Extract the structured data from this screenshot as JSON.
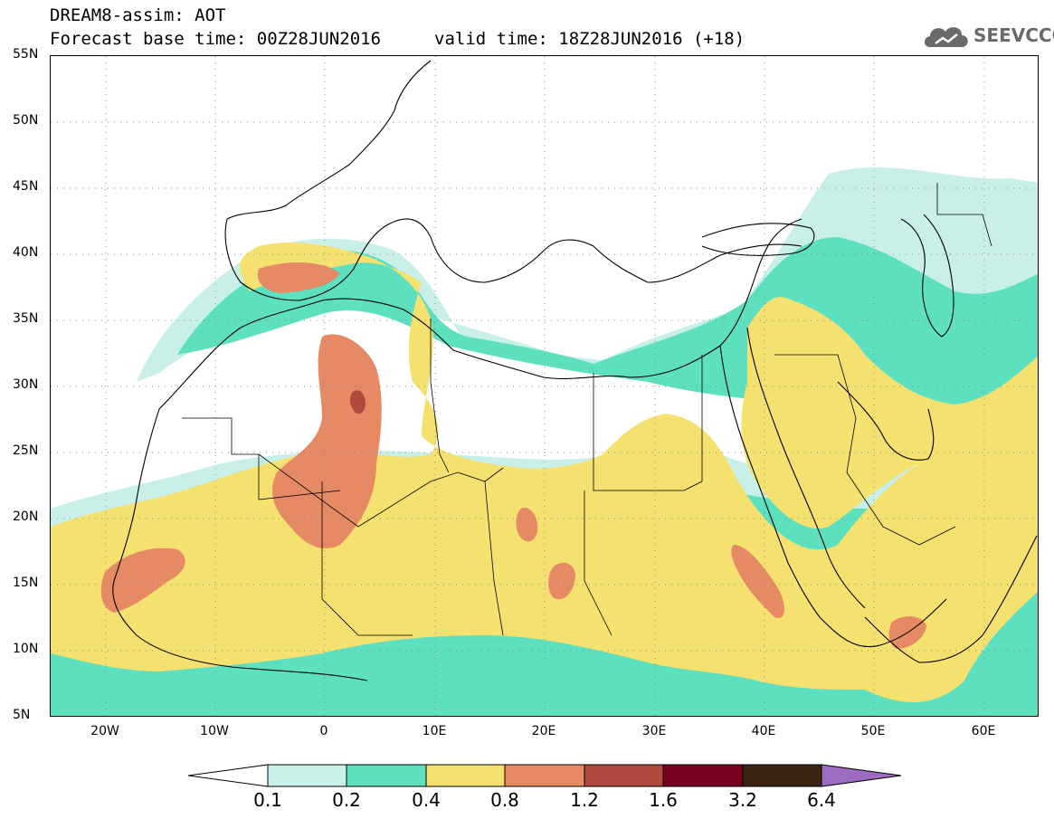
{
  "title": {
    "line1": "DREAM8-assim: AOT",
    "forecast": "Forecast base time: 00Z28JUN2016",
    "valid": "valid time: 18Z28JUN2016 (+18)"
  },
  "logo": {
    "text": "SEEVCCC",
    "icon": "cloud-icon"
  },
  "map": {
    "lat_labels": [
      "55N",
      "50N",
      "45N",
      "40N",
      "35N",
      "30N",
      "25N",
      "20N",
      "15N",
      "10N",
      "5N"
    ],
    "lon_labels": [
      "20W",
      "10W",
      "0",
      "10E",
      "20E",
      "30E",
      "40E",
      "50E",
      "60E"
    ],
    "lat_range": [
      5,
      55
    ],
    "lon_range": [
      -25,
      65
    ],
    "gridlines": "dotted",
    "colors": {
      "level1": "#c8f0e8",
      "level2": "#5ce0c0",
      "level3": "#f5e170",
      "level4": "#e68a66",
      "level5": "#b04a3e",
      "level6": "#7a0020",
      "level7": "#3a2414",
      "level8": "#9b6cbf",
      "coast": "#000000"
    }
  },
  "colorbar": {
    "labels": [
      "0.1",
      "0.2",
      "0.4",
      "0.8",
      "1.2",
      "1.6",
      "3.2",
      "6.4"
    ],
    "colors": [
      "#c8f0e8",
      "#5ce0c0",
      "#f5e170",
      "#e68a66",
      "#b04a3e",
      "#7a0020",
      "#3a2414"
    ],
    "low_arrow_color": "#ffffff",
    "high_arrow_color": "#9b6cbf"
  }
}
